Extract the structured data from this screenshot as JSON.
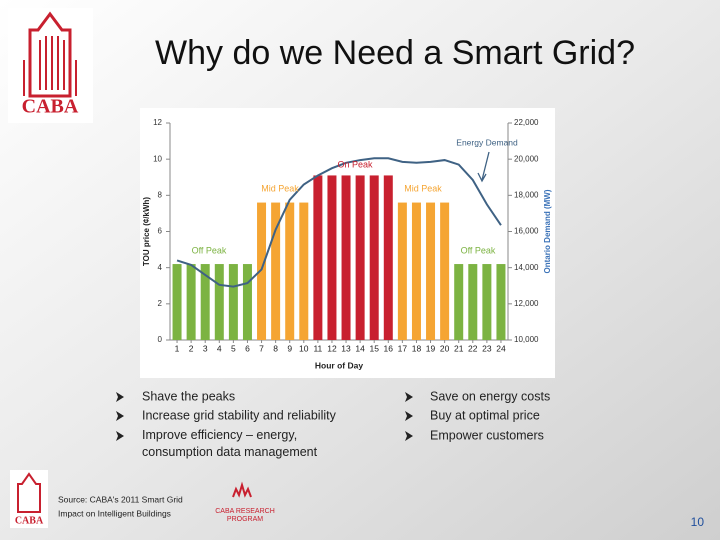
{
  "slide": {
    "title": "Why do we Need a Smart Grid?",
    "logo_text": "CABA",
    "bullets_left": [
      "Shave the peaks",
      "Increase grid stability and reliability",
      "Improve efficiency – energy, consumption data management"
    ],
    "bullets_right": [
      "Save on energy costs",
      "Buy at optimal price",
      "Empower customers"
    ],
    "source_lines": [
      "Source: CABA's 2011 Smart Grid",
      "Impact on Intelligent Buildings"
    ],
    "footer_logo_text": "CABA",
    "research_lines": [
      "CABA RESEARCH",
      "PROGRAM"
    ],
    "page_number": "10"
  },
  "chart_data": {
    "type": "bar",
    "xlabel": "Hour of Day",
    "ylabel": "TOU price (¢/kWh)",
    "y2label": "Ontario Demand (MW)",
    "categories": [
      "1",
      "2",
      "3",
      "4",
      "5",
      "6",
      "7",
      "8",
      "9",
      "10",
      "11",
      "12",
      "13",
      "14",
      "15",
      "16",
      "17",
      "18",
      "19",
      "20",
      "21",
      "22",
      "23",
      "24"
    ],
    "values": [
      4.2,
      4.2,
      4.2,
      4.2,
      4.2,
      4.2,
      7.6,
      7.6,
      7.6,
      7.6,
      9.1,
      9.1,
      9.1,
      9.1,
      9.1,
      9.1,
      7.6,
      7.6,
      7.6,
      7.6,
      4.2,
      4.2,
      4.2,
      4.2
    ],
    "colors": [
      "#7cb342",
      "#7cb342",
      "#7cb342",
      "#7cb342",
      "#7cb342",
      "#7cb342",
      "#f5a533",
      "#f5a533",
      "#f5a533",
      "#f5a533",
      "#c8202f",
      "#c8202f",
      "#c8202f",
      "#c8202f",
      "#c8202f",
      "#c8202f",
      "#f5a533",
      "#f5a533",
      "#f5a533",
      "#f5a533",
      "#7cb342",
      "#7cb342",
      "#7cb342",
      "#7cb342"
    ],
    "demand": {
      "axis": "y2",
      "color": "#3f6284",
      "values": [
        14400,
        14150,
        13600,
        13050,
        12950,
        13150,
        13900,
        16100,
        17750,
        18600,
        19100,
        19500,
        19800,
        19950,
        20050,
        20050,
        19850,
        19800,
        19850,
        19950,
        19700,
        18850,
        17500,
        16350
      ]
    },
    "ylim": [
      0,
      12
    ],
    "yticks": [
      0,
      2,
      4,
      6,
      8,
      10,
      12
    ],
    "y2lim": [
      10000,
      22000
    ],
    "y2ticks": [
      {
        "value": 10000,
        "label": "10,000"
      },
      {
        "value": 12000,
        "label": "12,000"
      },
      {
        "value": 14000,
        "label": "14,000"
      },
      {
        "value": 16000,
        "label": "16,000"
      },
      {
        "value": 18000,
        "label": "18,000"
      },
      {
        "value": 20000,
        "label": "20,000"
      },
      {
        "value": 22000,
        "label": "22,000"
      }
    ],
    "annotations": [
      "Off Peak",
      "Mid Peak",
      "On Peak",
      "Mid Peak",
      "Off Peak",
      "Energy Demand"
    ]
  }
}
